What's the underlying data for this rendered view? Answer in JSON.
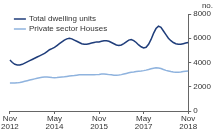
{
  "chart_data": {
    "type": "line",
    "ylabel": "no.",
    "categories": [
      "Nov 2012",
      null,
      null,
      null,
      null,
      null,
      null,
      null,
      null,
      null,
      null,
      null,
      null,
      null,
      null,
      null,
      null,
      null,
      "May 2014",
      null,
      null,
      null,
      null,
      null,
      null,
      null,
      null,
      null,
      null,
      null,
      null,
      null,
      null,
      null,
      null,
      null,
      "Nov 2015",
      null,
      null,
      null,
      null,
      null,
      null,
      null,
      null,
      null,
      null,
      null,
      null,
      null,
      null,
      null,
      null,
      null,
      "May 2017",
      null,
      null,
      null,
      null,
      null,
      null,
      null,
      null,
      null,
      null,
      null,
      null,
      null,
      null,
      null,
      null,
      null,
      "Nov 2018"
    ],
    "series": [
      {
        "name": "Total dwelling units",
        "color": "#1f3d7a",
        "values": [
          4200,
          4000,
          3850,
          3800,
          3800,
          3850,
          3950,
          4050,
          4150,
          4250,
          4350,
          4450,
          4550,
          4650,
          4750,
          4900,
          5050,
          5150,
          5250,
          5400,
          5550,
          5700,
          5850,
          5950,
          6000,
          5950,
          5850,
          5750,
          5650,
          5550,
          5500,
          5500,
          5550,
          5600,
          5650,
          5700,
          5700,
          5750,
          5800,
          5800,
          5750,
          5650,
          5550,
          5450,
          5400,
          5450,
          5550,
          5700,
          5850,
          5900,
          5800,
          5650,
          5450,
          5300,
          5200,
          5250,
          5500,
          5900,
          6400,
          6800,
          7000,
          6900,
          6600,
          6300,
          6000,
          5800,
          5650,
          5550,
          5500,
          5500,
          5550,
          5600,
          5650
        ]
      },
      {
        "name": "Private sector Houses",
        "color": "#8fb3de",
        "values": [
          2300,
          2300,
          2300,
          2320,
          2350,
          2400,
          2450,
          2500,
          2550,
          2600,
          2650,
          2700,
          2750,
          2780,
          2800,
          2800,
          2780,
          2760,
          2750,
          2760,
          2780,
          2800,
          2820,
          2850,
          2880,
          2900,
          2920,
          2950,
          2980,
          3000,
          3000,
          2990,
          2980,
          2980,
          2990,
          3000,
          3020,
          3050,
          3050,
          3030,
          3000,
          2980,
          2950,
          2950,
          2960,
          3000,
          3050,
          3100,
          3150,
          3200,
          3220,
          3250,
          3280,
          3300,
          3330,
          3370,
          3420,
          3480,
          3530,
          3560,
          3550,
          3500,
          3420,
          3350,
          3300,
          3250,
          3220,
          3200,
          3200,
          3220,
          3250,
          3280,
          3300
        ]
      }
    ],
    "ylim": [
      0,
      8000
    ],
    "yticks": [
      0,
      2000,
      4000,
      6000,
      8000
    ],
    "grid": false,
    "legend": "upper left"
  }
}
